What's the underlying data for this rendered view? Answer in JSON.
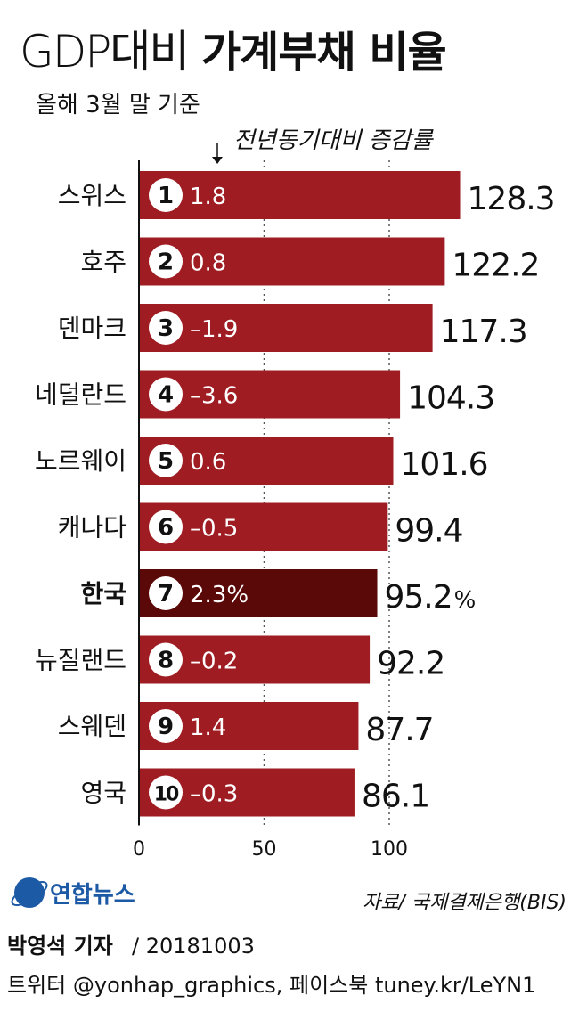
{
  "chart_data": {
    "type": "bar",
    "orientation": "horizontal",
    "title_light": "GDP대비",
    "title_bold": "가계부채 비율",
    "subtitle": "올해 3월 말 기준",
    "annotation": "전년동기대비 증감률",
    "categories": [
      "스위스",
      "호주",
      "덴마크",
      "네덜란드",
      "노르웨이",
      "캐나다",
      "한국",
      "뉴질랜드",
      "스웨덴",
      "영국"
    ],
    "ranks": [
      "1",
      "2",
      "3",
      "4",
      "5",
      "6",
      "7",
      "8",
      "9",
      "10"
    ],
    "values": [
      128.3,
      122.2,
      117.3,
      104.3,
      101.6,
      99.4,
      95.2,
      92.2,
      87.7,
      86.1
    ],
    "value_labels": [
      "128.3",
      "122.2",
      "117.3",
      "104.3",
      "101.6",
      "99.4",
      "95.2",
      "92.2",
      "87.7",
      "86.1"
    ],
    "change_labels": [
      "1.8",
      "0.8",
      "–1.9",
      "–3.6",
      "0.6",
      "–0.5",
      "2.3%",
      "–0.2",
      "1.4",
      "–0.3"
    ],
    "highlight_category": "한국",
    "highlight_unit": "%",
    "xticks": [
      "0",
      "50",
      "100"
    ],
    "xlim": [
      0,
      140
    ],
    "grid": true,
    "colors": {
      "bar": "#9e1c22",
      "highlight": "#5a0808",
      "text": "#111111"
    }
  },
  "logo": {
    "text": "연합뉴스",
    "icon": "yonhap-logo-icon"
  },
  "source": "자료/ 국제결제은행(BIS)",
  "byline": "박영석 기자",
  "date": "/ 20181003",
  "footer": "트위터 @yonhap_graphics, 페이스북 tuney.kr/LeYN1"
}
